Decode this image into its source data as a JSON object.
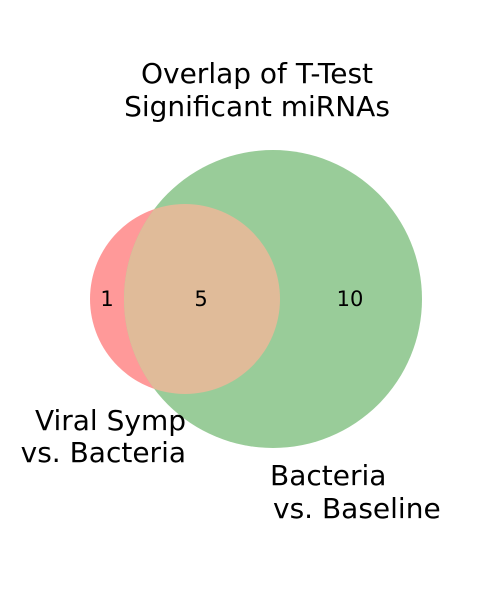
{
  "title": {
    "line1": "Overlap of T-Test",
    "line2": "Significant miRNAs"
  },
  "sets": {
    "a": {
      "label_line1": "Viral Symp",
      "label_line2": "vs. Bacteria",
      "color": "#ff9999"
    },
    "b": {
      "label_line1": "Bacteria",
      "label_line2": "vs. Baseline",
      "color": "#99cc99"
    },
    "overlap_color": "#e0bb99"
  },
  "counts": {
    "a_only": "1",
    "both": "5",
    "b_only": "10"
  }
}
